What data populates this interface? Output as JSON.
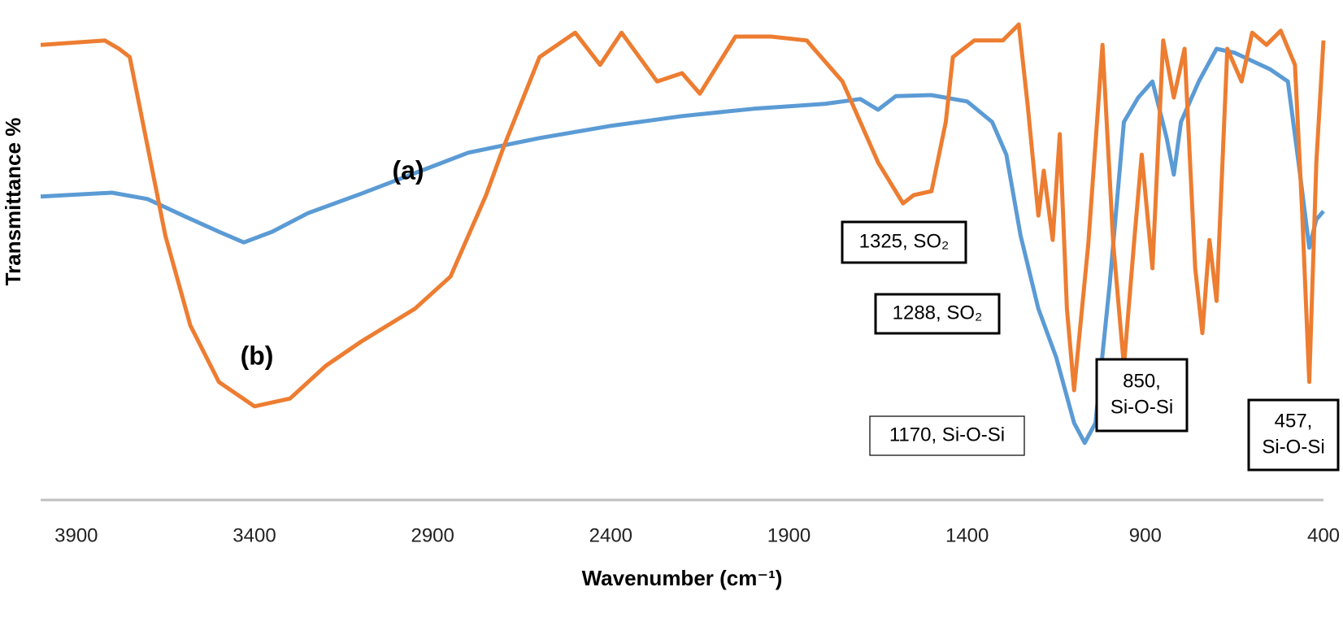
{
  "chart_data": {
    "type": "line",
    "x_label": "Wavenumber (cm⁻¹)",
    "y_label": "Transmittance %",
    "xlim": [
      4000,
      400
    ],
    "ylim": [
      0,
      100
    ],
    "xticks": [
      3900,
      3400,
      2900,
      2400,
      1900,
      1400,
      900,
      400
    ],
    "series": [
      {
        "name": "(a)",
        "color": "#5b9bd5",
        "x": [
          4000,
          3800,
          3700,
          3600,
          3500,
          3430,
          3350,
          3250,
          3100,
          2950,
          2800,
          2600,
          2400,
          2200,
          2000,
          1800,
          1700,
          1650,
          1600,
          1500,
          1400,
          1330,
          1290,
          1250,
          1200,
          1150,
          1100,
          1070,
          1040,
          1000,
          960,
          920,
          880,
          840,
          820,
          800,
          750,
          700,
          650,
          600,
          550,
          500,
          470,
          440,
          420,
          400
        ],
        "values": [
          62.2,
          63,
          61.7,
          58.3,
          55,
          52.8,
          55,
          58.8,
          62.8,
          67,
          71.2,
          74.2,
          76.7,
          78.7,
          80.2,
          81.2,
          82.2,
          80,
          82.8,
          83,
          81.7,
          77.5,
          70.8,
          54.2,
          39.2,
          29.2,
          15.8,
          11.7,
          15.8,
          44.2,
          77.5,
          82.5,
          85.8,
          74.2,
          66.7,
          77.5,
          85.8,
          92.5,
          91.7,
          90,
          88.3,
          85.8,
          69.2,
          51.7,
          57.5,
          59.2
        ]
      },
      {
        "name": "(b)",
        "color": "#ed7d31",
        "x": [
          4000,
          3820,
          3780,
          3750,
          3700,
          3650,
          3580,
          3500,
          3400,
          3300,
          3200,
          3100,
          2950,
          2850,
          2750,
          2700,
          2600,
          2500,
          2430,
          2370,
          2270,
          2200,
          2150,
          2050,
          1950,
          1850,
          1750,
          1650,
          1580,
          1550,
          1500,
          1460,
          1440,
          1380,
          1300,
          1255,
          1230,
          1200,
          1185,
          1160,
          1140,
          1120,
          1100,
          1060,
          1020,
          990,
          960,
          930,
          910,
          880,
          850,
          820,
          790,
          760,
          740,
          720,
          700,
          670,
          630,
          600,
          560,
          520,
          480,
          460,
          440,
          420,
          400
        ],
        "values": [
          93.3,
          94.2,
          92.5,
          90.8,
          72.5,
          54.2,
          35.8,
          24.2,
          19.2,
          20.8,
          27.5,
          32.5,
          39.2,
          45.8,
          62.5,
          72.5,
          90.8,
          95.8,
          89.2,
          95.8,
          85.8,
          87.5,
          83.3,
          95,
          95,
          94.2,
          85.8,
          69.2,
          60.8,
          62.5,
          63.3,
          77.5,
          90.8,
          94.2,
          94.2,
          97.5,
          80.8,
          58.3,
          67.5,
          53.3,
          75,
          39.2,
          22.5,
          52.5,
          93.3,
          52.5,
          27.5,
          54.2,
          70.8,
          47.5,
          94.2,
          82.5,
          92.5,
          47.5,
          34.2,
          53.3,
          40.8,
          92.5,
          85.8,
          95.8,
          93.3,
          96.2,
          89.2,
          59.2,
          24.2,
          69.2,
          94.2
        ]
      }
    ],
    "annotations": [
      {
        "lines": [
          "1325, SO₂"
        ]
      },
      {
        "lines": [
          "1288, SO₂"
        ]
      },
      {
        "lines": [
          "1170, Si-O-Si"
        ]
      },
      {
        "lines": [
          "850,",
          "Si-O-Si"
        ]
      },
      {
        "lines": [
          "457,",
          "Si-O-Si"
        ]
      }
    ]
  }
}
